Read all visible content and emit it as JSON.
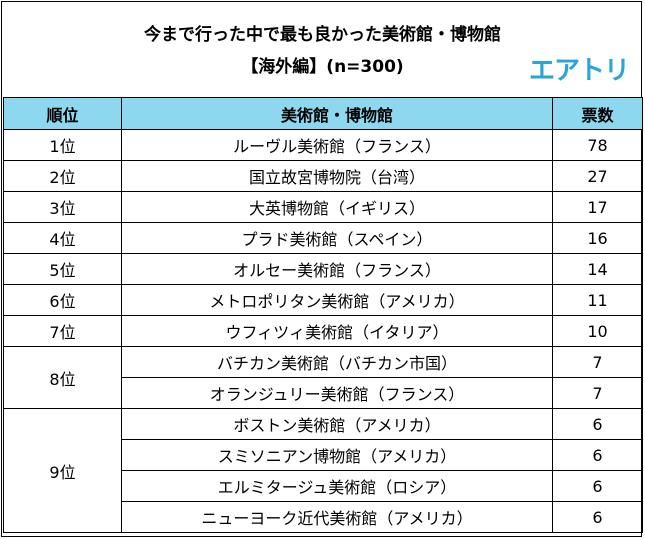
{
  "title_line1": "今まで行った中で最も良かった美術館・博物館",
  "title_line2": "【海外編】(n=300)",
  "logo_text": "エアトリ",
  "colors": {
    "header_bg": "#8ed8ef",
    "logo": "#2aa5d6"
  },
  "chart_data": {
    "type": "table",
    "columns": [
      "順位",
      "美術館・博物館",
      "票数"
    ],
    "rows": [
      {
        "rank": "1位",
        "name": "ルーヴル美術館（フランス）",
        "votes": "78"
      },
      {
        "rank": "2位",
        "name": "国立故宮博物院（台湾）",
        "votes": "27"
      },
      {
        "rank": "3位",
        "name": "大英博物館（イギリス）",
        "votes": "17"
      },
      {
        "rank": "4位",
        "name": "プラド美術館（スペイン）",
        "votes": "16"
      },
      {
        "rank": "5位",
        "name": "オルセー美術館（フランス）",
        "votes": "14"
      },
      {
        "rank": "6位",
        "name": "メトロポリタン美術館（アメリカ）",
        "votes": "11"
      },
      {
        "rank": "7位",
        "name": "ウフィツィ美術館（イタリア）",
        "votes": "10"
      },
      {
        "rank": "8位",
        "name": "バチカン美術館（バチカン市国）",
        "votes": "7"
      },
      {
        "rank": "8位",
        "name": "オランジュリー美術館（フランス）",
        "votes": "7"
      },
      {
        "rank": "9位",
        "name": "ボストン美術館（アメリカ）",
        "votes": "6"
      },
      {
        "rank": "9位",
        "name": "スミソニアン博物館（アメリカ）",
        "votes": "6"
      },
      {
        "rank": "9位",
        "name": "エルミタージュ美術館（ロシア）",
        "votes": "6"
      },
      {
        "rank": "9位",
        "name": "ニューヨーク近代美術館（アメリカ）",
        "votes": "6"
      }
    ]
  }
}
